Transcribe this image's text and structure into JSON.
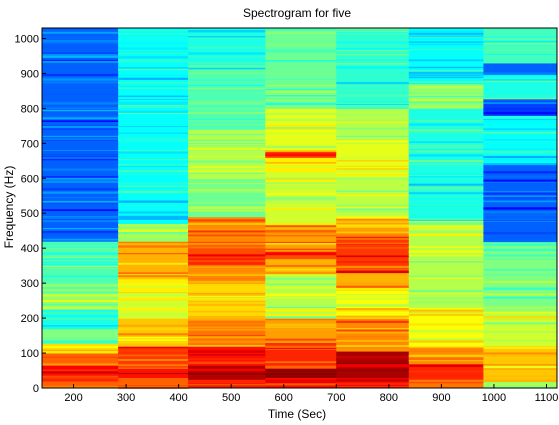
{
  "chart_data": {
    "type": "heatmap",
    "title": "Spectrogram for five",
    "xlabel": "Time (Sec)",
    "ylabel": "Frequency (Hz)",
    "xlim": [
      140,
      1120
    ],
    "ylim": [
      0,
      1030
    ],
    "xticks": [
      200,
      300,
      400,
      500,
      600,
      700,
      800,
      900,
      1000,
      1100
    ],
    "yticks": [
      0,
      100,
      200,
      300,
      400,
      500,
      600,
      700,
      800,
      900,
      1000
    ],
    "colormap": "jet",
    "grid": false,
    "columns": [
      {
        "x_start": 140,
        "x_end": 285,
        "bands": [
          {
            "f0": 0,
            "f1": 20,
            "v": 0.78
          },
          {
            "f0": 20,
            "f1": 40,
            "v": 0.84
          },
          {
            "f0": 40,
            "f1": 70,
            "v": 0.88
          },
          {
            "f0": 70,
            "f1": 100,
            "v": 0.78
          },
          {
            "f0": 100,
            "f1": 130,
            "v": 0.66
          },
          {
            "f0": 130,
            "f1": 170,
            "v": 0.5
          },
          {
            "f0": 170,
            "f1": 230,
            "v": 0.4
          },
          {
            "f0": 230,
            "f1": 300,
            "v": 0.52
          },
          {
            "f0": 300,
            "f1": 360,
            "v": 0.45
          },
          {
            "f0": 360,
            "f1": 420,
            "v": 0.46
          },
          {
            "f0": 420,
            "f1": 1030,
            "v": 0.22
          }
        ]
      },
      {
        "x_start": 285,
        "x_end": 418,
        "bands": [
          {
            "f0": 0,
            "f1": 30,
            "v": 0.78
          },
          {
            "f0": 30,
            "f1": 60,
            "v": 0.86
          },
          {
            "f0": 60,
            "f1": 120,
            "v": 0.82
          },
          {
            "f0": 120,
            "f1": 200,
            "v": 0.68
          },
          {
            "f0": 200,
            "f1": 270,
            "v": 0.58
          },
          {
            "f0": 270,
            "f1": 320,
            "v": 0.64
          },
          {
            "f0": 320,
            "f1": 420,
            "v": 0.7
          },
          {
            "f0": 420,
            "f1": 470,
            "v": 0.52
          },
          {
            "f0": 470,
            "f1": 1030,
            "v": 0.38
          }
        ]
      },
      {
        "x_start": 418,
        "x_end": 565,
        "bands": [
          {
            "f0": 0,
            "f1": 25,
            "v": 0.84
          },
          {
            "f0": 25,
            "f1": 65,
            "v": 0.95
          },
          {
            "f0": 65,
            "f1": 120,
            "v": 0.86
          },
          {
            "f0": 120,
            "f1": 200,
            "v": 0.76
          },
          {
            "f0": 200,
            "f1": 300,
            "v": 0.66
          },
          {
            "f0": 300,
            "f1": 350,
            "v": 0.74
          },
          {
            "f0": 350,
            "f1": 420,
            "v": 0.8
          },
          {
            "f0": 420,
            "f1": 490,
            "v": 0.74
          },
          {
            "f0": 490,
            "f1": 600,
            "v": 0.48
          },
          {
            "f0": 600,
            "f1": 740,
            "v": 0.55
          },
          {
            "f0": 740,
            "f1": 900,
            "v": 0.45
          },
          {
            "f0": 900,
            "f1": 1030,
            "v": 0.4
          }
        ]
      },
      {
        "x_start": 565,
        "x_end": 700,
        "bands": [
          {
            "f0": 0,
            "f1": 30,
            "v": 0.86
          },
          {
            "f0": 30,
            "f1": 60,
            "v": 0.98
          },
          {
            "f0": 60,
            "f1": 130,
            "v": 0.84
          },
          {
            "f0": 130,
            "f1": 200,
            "v": 0.72
          },
          {
            "f0": 200,
            "f1": 330,
            "v": 0.55
          },
          {
            "f0": 330,
            "f1": 370,
            "v": 0.7
          },
          {
            "f0": 370,
            "f1": 400,
            "v": 0.8
          },
          {
            "f0": 400,
            "f1": 470,
            "v": 0.72
          },
          {
            "f0": 470,
            "f1": 620,
            "v": 0.58
          },
          {
            "f0": 620,
            "f1": 660,
            "v": 0.64
          },
          {
            "f0": 660,
            "f1": 680,
            "v": 0.82
          },
          {
            "f0": 680,
            "f1": 800,
            "v": 0.6
          },
          {
            "f0": 800,
            "f1": 1030,
            "v": 0.48
          }
        ]
      },
      {
        "x_start": 700,
        "x_end": 838,
        "bands": [
          {
            "f0": 0,
            "f1": 30,
            "v": 0.88
          },
          {
            "f0": 30,
            "f1": 110,
            "v": 0.96
          },
          {
            "f0": 110,
            "f1": 200,
            "v": 0.74
          },
          {
            "f0": 200,
            "f1": 280,
            "v": 0.62
          },
          {
            "f0": 280,
            "f1": 330,
            "v": 0.7
          },
          {
            "f0": 330,
            "f1": 440,
            "v": 0.82
          },
          {
            "f0": 440,
            "f1": 490,
            "v": 0.72
          },
          {
            "f0": 490,
            "f1": 600,
            "v": 0.56
          },
          {
            "f0": 600,
            "f1": 700,
            "v": 0.6
          },
          {
            "f0": 700,
            "f1": 800,
            "v": 0.55
          },
          {
            "f0": 800,
            "f1": 1030,
            "v": 0.42
          }
        ]
      },
      {
        "x_start": 838,
        "x_end": 980,
        "bands": [
          {
            "f0": 0,
            "f1": 30,
            "v": 0.76
          },
          {
            "f0": 30,
            "f1": 70,
            "v": 0.84
          },
          {
            "f0": 70,
            "f1": 120,
            "v": 0.74
          },
          {
            "f0": 120,
            "f1": 230,
            "v": 0.62
          },
          {
            "f0": 230,
            "f1": 480,
            "v": 0.55
          },
          {
            "f0": 480,
            "f1": 800,
            "v": 0.4
          },
          {
            "f0": 800,
            "f1": 870,
            "v": 0.52
          },
          {
            "f0": 870,
            "f1": 1030,
            "v": 0.38
          }
        ]
      },
      {
        "x_start": 980,
        "x_end": 1120,
        "bands": [
          {
            "f0": 0,
            "f1": 20,
            "v": 0.52
          },
          {
            "f0": 20,
            "f1": 120,
            "v": 0.68
          },
          {
            "f0": 120,
            "f1": 220,
            "v": 0.58
          },
          {
            "f0": 220,
            "f1": 420,
            "v": 0.5
          },
          {
            "f0": 420,
            "f1": 640,
            "v": 0.22
          },
          {
            "f0": 640,
            "f1": 780,
            "v": 0.38
          },
          {
            "f0": 780,
            "f1": 830,
            "v": 0.18
          },
          {
            "f0": 830,
            "f1": 900,
            "v": 0.4
          },
          {
            "f0": 900,
            "f1": 930,
            "v": 0.22
          },
          {
            "f0": 930,
            "f1": 1030,
            "v": 0.44
          }
        ]
      }
    ]
  }
}
